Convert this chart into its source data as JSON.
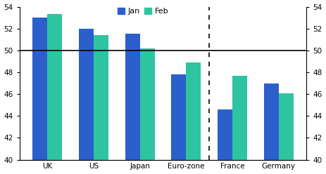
{
  "categories": [
    "UK",
    "US",
    "Japan",
    "Euro-zone",
    "France",
    "Germany"
  ],
  "jan_values": [
    53.0,
    52.0,
    51.5,
    47.8,
    44.6,
    47.0
  ],
  "feb_values": [
    53.3,
    51.4,
    50.2,
    48.9,
    47.7,
    46.1
  ],
  "jan_color": "#2b5fcc",
  "feb_color": "#2ec4a0",
  "ylim": [
    40,
    54
  ],
  "yticks": [
    40,
    42,
    44,
    46,
    48,
    50,
    52,
    54
  ],
  "hline_y": 50,
  "dashed_vline_x": 3.5,
  "legend_jan": "Jan",
  "legend_feb": "Feb",
  "bar_width": 0.32,
  "background_color": "#ffffff",
  "figsize": [
    4.63,
    2.48
  ],
  "dpi": 100
}
